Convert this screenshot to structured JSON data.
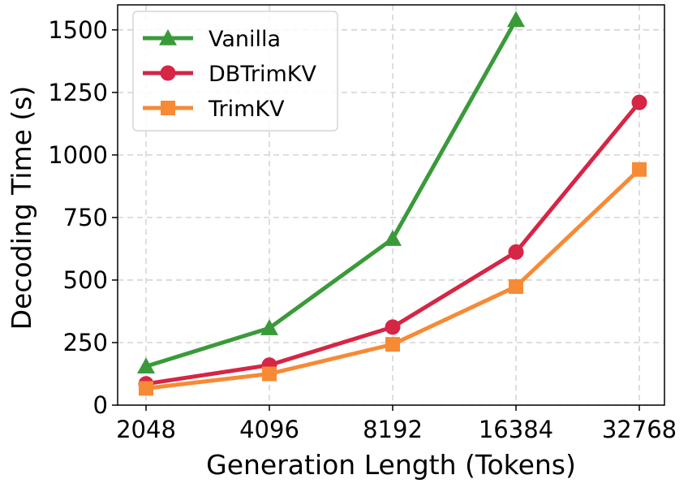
{
  "chart_data": {
    "type": "line",
    "title": "",
    "xlabel": "Generation Length (Tokens)",
    "ylabel": "Decoding Time (s)",
    "categories": [
      "2048",
      "4096",
      "8192",
      "16384",
      "32768"
    ],
    "yticks": [
      "0",
      "250",
      "500",
      "750",
      "1000",
      "1250",
      "1500"
    ],
    "ylim": [
      0,
      1600
    ],
    "grid": true,
    "legend_position": "top-left",
    "series": [
      {
        "name": "Vanilla",
        "color": "#3a9a3a",
        "marker": "triangle",
        "values": [
          155,
          308,
          665,
          1540,
          null
        ]
      },
      {
        "name": "DBTrimKV",
        "color": "#d62545",
        "marker": "circle",
        "values": [
          85,
          160,
          312,
          612,
          1210
        ]
      },
      {
        "name": "TrimKV",
        "color": "#f78a35",
        "marker": "square",
        "values": [
          67,
          125,
          243,
          474,
          942
        ]
      }
    ]
  }
}
